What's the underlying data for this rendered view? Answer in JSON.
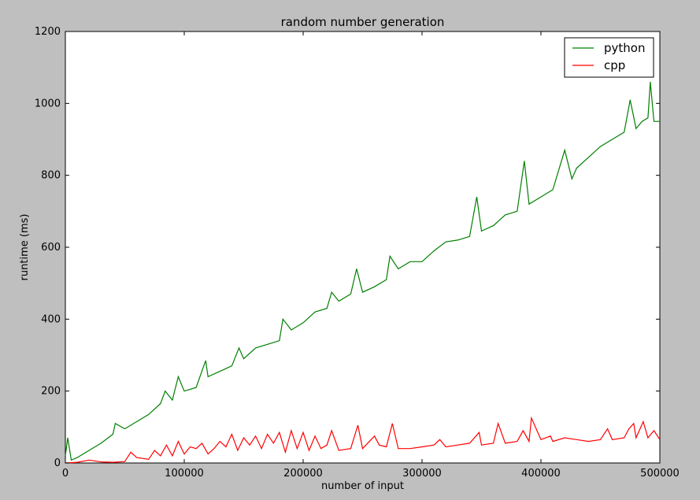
{
  "chart_data": {
    "type": "line",
    "title": "random number generation",
    "xlabel": "number of input",
    "ylabel": "runtime (ms)",
    "xlim": [
      0,
      500000
    ],
    "ylim": [
      0,
      1200
    ],
    "xticks": [
      0,
      100000,
      200000,
      300000,
      400000,
      500000
    ],
    "xtick_labels": [
      "0",
      "100000",
      "200000",
      "300000",
      "400000",
      "500000"
    ],
    "yticks": [
      0,
      200,
      400,
      600,
      800,
      1000,
      1200
    ],
    "ytick_labels": [
      "0",
      "200",
      "400",
      "600",
      "800",
      "1000",
      "1200"
    ],
    "grid": false,
    "legend_position": "top-right",
    "colors": {
      "python": "#007f00",
      "cpp": "#ff0000"
    },
    "series": [
      {
        "name": "python",
        "x": [
          0,
          2000,
          5000,
          10000,
          20000,
          30000,
          40000,
          42000,
          50000,
          60000,
          70000,
          80000,
          84000,
          90000,
          95000,
          100000,
          110000,
          118000,
          120000,
          130000,
          140000,
          146000,
          150000,
          160000,
          170000,
          180000,
          183000,
          190000,
          200000,
          210000,
          220000,
          224000,
          230000,
          240000,
          245000,
          250000,
          260000,
          270000,
          273000,
          280000,
          290000,
          300000,
          310000,
          320000,
          330000,
          340000,
          346000,
          350000,
          360000,
          370000,
          380000,
          386000,
          390000,
          400000,
          410000,
          420000,
          426000,
          430000,
          440000,
          450000,
          460000,
          470000,
          475000,
          480000,
          485000,
          490000,
          492000,
          495000,
          500000
        ],
        "y": [
          20,
          70,
          8,
          15,
          35,
          55,
          80,
          110,
          95,
          115,
          135,
          165,
          200,
          175,
          240,
          200,
          210,
          285,
          240,
          255,
          270,
          320,
          290,
          320,
          330,
          340,
          400,
          370,
          390,
          420,
          430,
          475,
          450,
          470,
          540,
          475,
          490,
          510,
          575,
          540,
          560,
          560,
          590,
          615,
          620,
          630,
          740,
          645,
          660,
          690,
          700,
          840,
          720,
          740,
          760,
          870,
          790,
          820,
          850,
          880,
          900,
          920,
          1010,
          930,
          950,
          960,
          1060,
          950,
          950
        ]
      },
      {
        "name": "cpp",
        "x": [
          0,
          10000,
          20000,
          30000,
          40000,
          50000,
          55000,
          60000,
          70000,
          75000,
          80000,
          85000,
          90000,
          95000,
          100000,
          105000,
          110000,
          115000,
          120000,
          125000,
          130000,
          135000,
          140000,
          145000,
          150000,
          155000,
          160000,
          165000,
          170000,
          175000,
          180000,
          185000,
          190000,
          195000,
          200000,
          205000,
          210000,
          215000,
          220000,
          224000,
          230000,
          240000,
          246000,
          250000,
          260000,
          264000,
          270000,
          275000,
          280000,
          290000,
          300000,
          310000,
          315000,
          320000,
          330000,
          340000,
          348000,
          350000,
          360000,
          364000,
          370000,
          380000,
          385000,
          390000,
          392000,
          400000,
          408000,
          410000,
          420000,
          430000,
          440000,
          450000,
          456000,
          460000,
          470000,
          474000,
          478000,
          480000,
          486000,
          490000,
          495000,
          500000
        ],
        "y": [
          0,
          2,
          8,
          3,
          2,
          4,
          30,
          15,
          10,
          35,
          20,
          50,
          20,
          60,
          25,
          45,
          40,
          55,
          25,
          40,
          60,
          45,
          80,
          35,
          70,
          50,
          75,
          40,
          80,
          55,
          85,
          30,
          90,
          40,
          85,
          35,
          75,
          40,
          50,
          90,
          35,
          40,
          105,
          40,
          75,
          50,
          45,
          110,
          40,
          40,
          45,
          50,
          65,
          45,
          50,
          55,
          85,
          50,
          55,
          110,
          55,
          60,
          90,
          60,
          125,
          65,
          75,
          60,
          70,
          65,
          60,
          65,
          95,
          65,
          70,
          95,
          110,
          70,
          115,
          70,
          90,
          65
        ]
      }
    ]
  }
}
